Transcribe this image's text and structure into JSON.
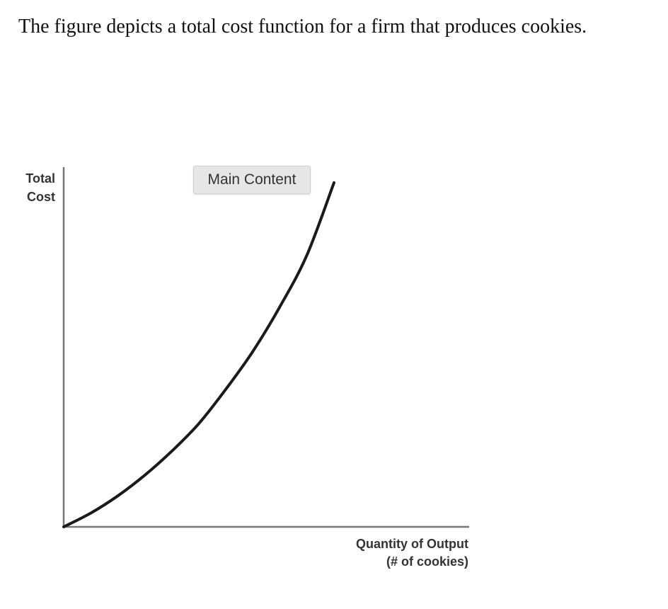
{
  "caption": "The figure depicts a total cost function for a firm that produces cookies.",
  "tooltip": "Main Content",
  "chart_data": {
    "type": "line",
    "title": "",
    "ylabel_lines": [
      "Total",
      "Cost"
    ],
    "xlabel_lines": [
      "Quantity of Output",
      "(# of cookies)"
    ],
    "series": [
      {
        "curve": "convex increasing",
        "x": [
          0,
          0.1,
          0.2,
          0.3,
          0.4,
          0.5,
          0.6,
          0.7,
          0.8,
          0.9,
          1.0
        ],
        "y": [
          0,
          0.04,
          0.09,
          0.15,
          0.22,
          0.3,
          0.4,
          0.51,
          0.64,
          0.79,
          1.0
        ]
      }
    ],
    "xlim": [
      0,
      1.5
    ],
    "ylim": [
      0,
      1.0
    ],
    "ticks": false,
    "grid": false,
    "axis_color": "#777777",
    "line_color": "#1a1a1a"
  }
}
